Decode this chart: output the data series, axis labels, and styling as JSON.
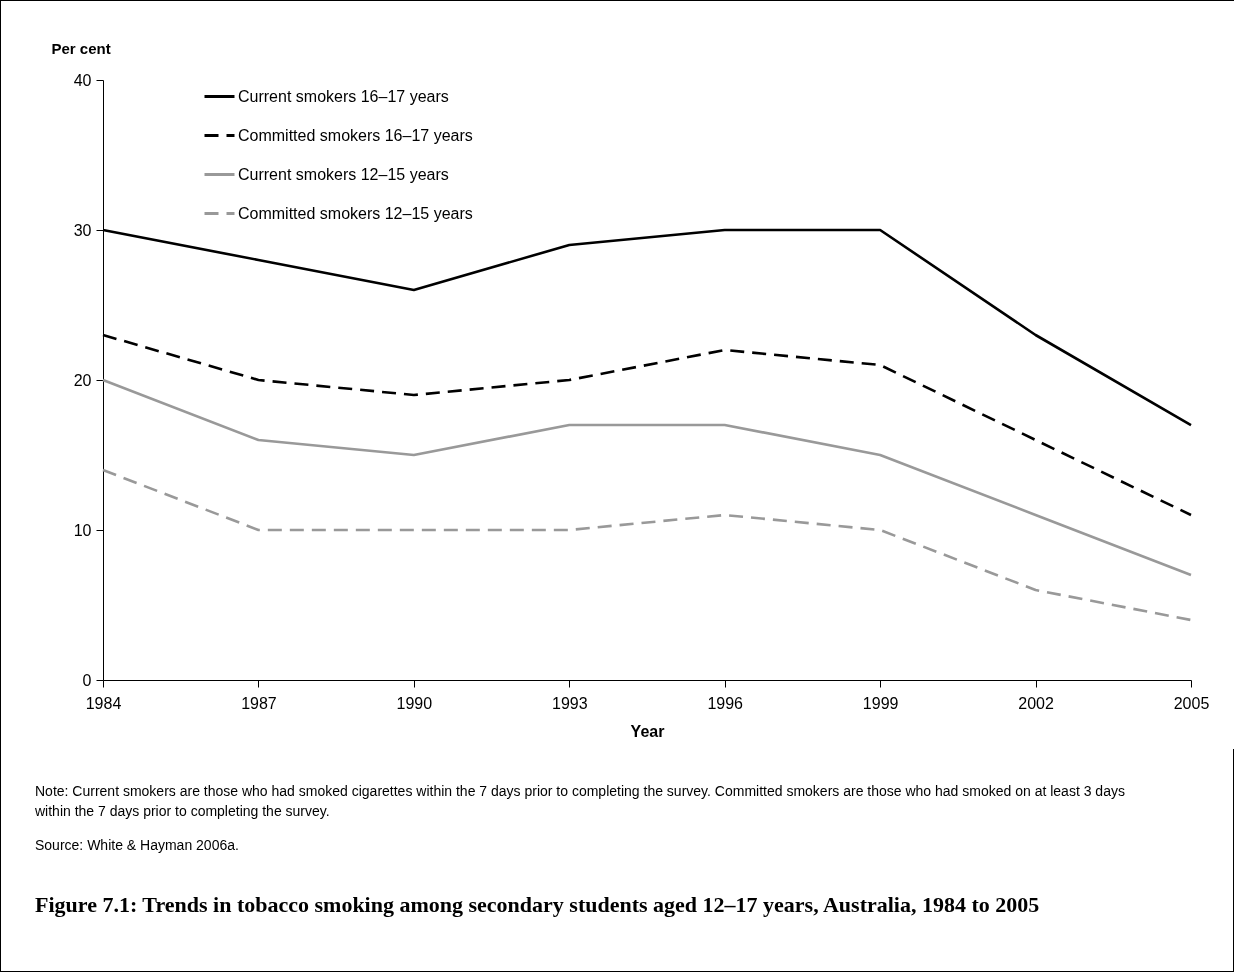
{
  "chart_data": {
    "type": "line",
    "title": "Figure 7.1: Trends in tobacco smoking among secondary students aged 12–17 years, Australia, 1984 to 2005",
    "xlabel": "Year",
    "ylabel": "Per cent",
    "x": [
      1984,
      1987,
      1990,
      1993,
      1996,
      1999,
      2002,
      2005
    ],
    "xlim": [
      1984,
      2005
    ],
    "xticks": [
      1984,
      1987,
      1990,
      1993,
      1996,
      1999,
      2002,
      2005
    ],
    "ylim": [
      0,
      40
    ],
    "yticks": [
      0,
      10,
      20,
      30,
      40
    ],
    "grid": false,
    "legend": "top left",
    "marker": "none",
    "series": [
      {
        "name": "Current smokers 16–17 years",
        "color": "#000000",
        "line_style": "solid",
        "values": [
          30,
          28,
          26,
          29,
          30,
          30,
          23,
          17
        ]
      },
      {
        "name": "Committed smokers 16–17 years",
        "color": "#000000",
        "line_style": "dashed",
        "values": [
          23,
          20,
          19,
          20,
          22,
          21,
          16,
          11
        ]
      },
      {
        "name": "Current smokers 12–15 years",
        "color": "#999999",
        "line_style": "solid",
        "values": [
          20,
          16,
          15,
          17,
          17,
          15,
          11,
          7
        ]
      },
      {
        "name": "Committed smokers 12–15 years",
        "color": "#999999",
        "line_style": "dashed",
        "values": [
          14,
          10,
          10,
          10,
          11,
          10,
          6,
          4
        ]
      }
    ],
    "annotations": [
      "Note: Current smokers are those who had smoked cigarettes within the 7 days prior to completing the survey. Committed smokers are those who had smoked on at least 3 days within the 7 days prior to completing the survey.",
      "Source: White & Hayman 2006a."
    ]
  }
}
